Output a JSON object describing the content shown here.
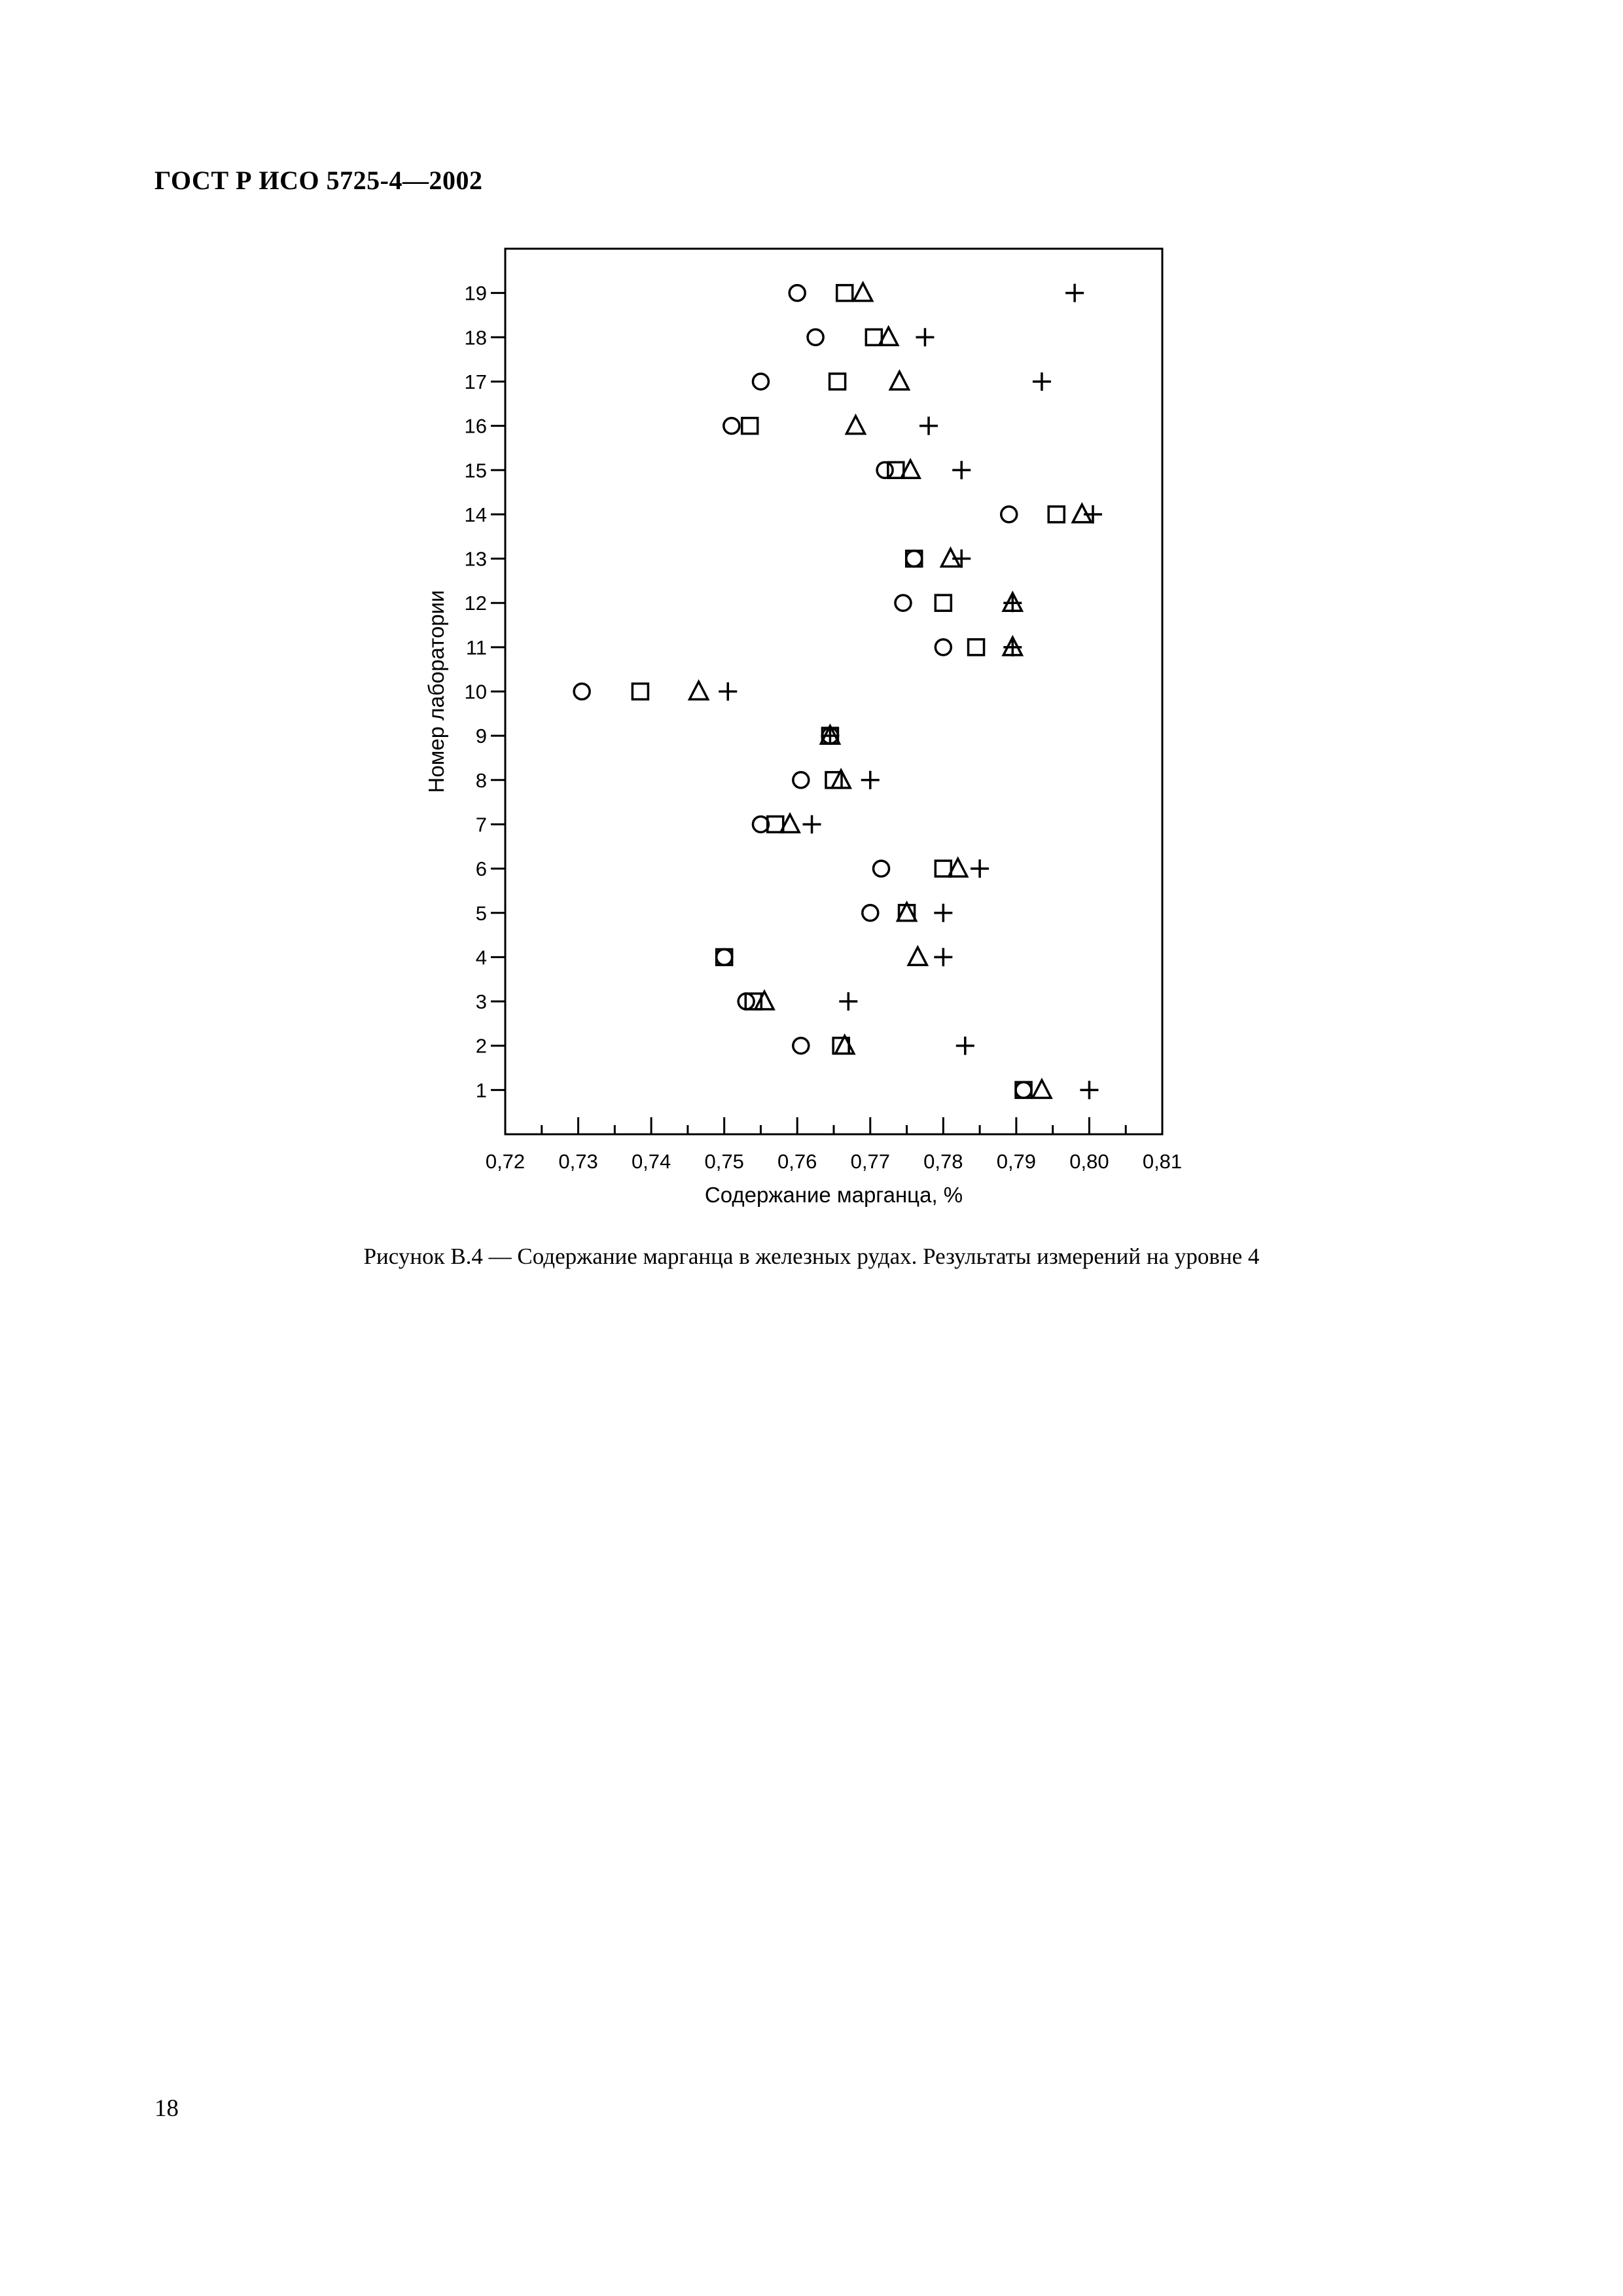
{
  "document": {
    "header": "ГОСТ Р ИСО 5725-4—2002",
    "caption": "Рисунок В.4 — Содержание марганца в железных рудах. Результаты измерений на уровне 4",
    "page_number": "18"
  },
  "chart_data": {
    "type": "scatter",
    "xlabel": "Содержание марганца, %",
    "ylabel": "Номер лаборатории",
    "xlim": [
      0.72,
      0.81
    ],
    "ylim": [
      0,
      20
    ],
    "x_ticks": [
      "0,72",
      "0,73",
      "0,74",
      "0,75",
      "0,76",
      "0,77",
      "0,78",
      "0,79",
      "0,80",
      "0,81"
    ],
    "y_ticks": [
      "1",
      "2",
      "3",
      "4",
      "5",
      "6",
      "7",
      "8",
      "9",
      "10",
      "11",
      "12",
      "13",
      "14",
      "15",
      "16",
      "17",
      "18",
      "19"
    ],
    "grid": false,
    "legend": "none",
    "series": [
      {
        "marker": "circle",
        "points": [
          [
            0.791,
            1
          ],
          [
            0.7605,
            2
          ],
          [
            0.753,
            3
          ],
          [
            0.75,
            4
          ],
          [
            0.77,
            5
          ],
          [
            0.7715,
            6
          ],
          [
            0.755,
            7
          ],
          [
            0.7605,
            8
          ],
          [
            0.7645,
            9
          ],
          [
            0.7305,
            10
          ],
          [
            0.78,
            11
          ],
          [
            0.7745,
            12
          ],
          [
            0.776,
            13
          ],
          [
            0.789,
            14
          ],
          [
            0.772,
            15
          ],
          [
            0.751,
            16
          ],
          [
            0.755,
            17
          ],
          [
            0.7625,
            18
          ],
          [
            0.76,
            19
          ]
        ]
      },
      {
        "marker": "square",
        "points": [
          [
            0.791,
            1
          ],
          [
            0.766,
            2
          ],
          [
            0.754,
            3
          ],
          [
            0.75,
            4
          ],
          [
            0.775,
            5
          ],
          [
            0.78,
            6
          ],
          [
            0.757,
            7
          ],
          [
            0.765,
            8
          ],
          [
            0.7645,
            9
          ],
          [
            0.7385,
            10
          ],
          [
            0.7845,
            11
          ],
          [
            0.78,
            12
          ],
          [
            0.776,
            13
          ],
          [
            0.7955,
            14
          ],
          [
            0.7735,
            15
          ],
          [
            0.7535,
            16
          ],
          [
            0.7655,
            17
          ],
          [
            0.7705,
            18
          ],
          [
            0.7665,
            19
          ]
        ]
      },
      {
        "marker": "triangle",
        "points": [
          [
            0.7935,
            1
          ],
          [
            0.7665,
            2
          ],
          [
            0.7555,
            3
          ],
          [
            0.7765,
            4
          ],
          [
            0.775,
            5
          ],
          [
            0.782,
            6
          ],
          [
            0.759,
            7
          ],
          [
            0.766,
            8
          ],
          [
            0.7645,
            9
          ],
          [
            0.7465,
            10
          ],
          [
            0.7895,
            11
          ],
          [
            0.7895,
            12
          ],
          [
            0.781,
            13
          ],
          [
            0.799,
            14
          ],
          [
            0.7755,
            15
          ],
          [
            0.768,
            16
          ],
          [
            0.774,
            17
          ],
          [
            0.7725,
            18
          ],
          [
            0.769,
            19
          ]
        ]
      },
      {
        "marker": "plus",
        "points": [
          [
            0.8,
            1
          ],
          [
            0.783,
            2
          ],
          [
            0.767,
            3
          ],
          [
            0.78,
            4
          ],
          [
            0.78,
            5
          ],
          [
            0.785,
            6
          ],
          [
            0.762,
            7
          ],
          [
            0.77,
            8
          ],
          [
            0.7645,
            9
          ],
          [
            0.7505,
            10
          ],
          [
            0.7895,
            11
          ],
          [
            0.7895,
            12
          ],
          [
            0.7825,
            13
          ],
          [
            0.8005,
            14
          ],
          [
            0.7825,
            15
          ],
          [
            0.778,
            16
          ],
          [
            0.7935,
            17
          ],
          [
            0.7775,
            18
          ],
          [
            0.798,
            19
          ]
        ]
      }
    ]
  }
}
